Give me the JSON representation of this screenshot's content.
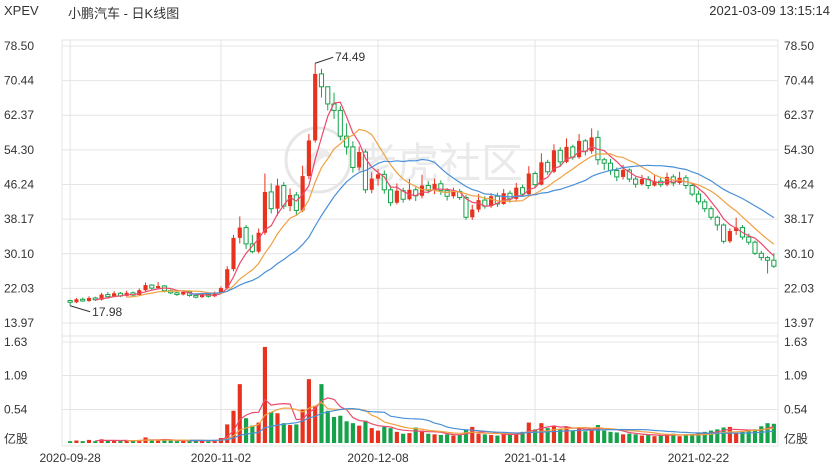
{
  "header": {
    "symbol": "XPEV",
    "title": "小鹏汽车 - 日K线图",
    "timestamp": "2021-03-09 13:15:14"
  },
  "watermark": "老虎社区",
  "colors": {
    "up": "#e8321d",
    "down": "#16a24a",
    "ma5": "#ec4a6c",
    "ma10": "#f0a040",
    "ma20": "#4a90d8",
    "grid": "#e4e4e4"
  },
  "chart_data": {
    "type": "candlestick",
    "price_axis": {
      "ticks": [
        "78.50",
        "70.44",
        "62.37",
        "54.30",
        "46.24",
        "38.17",
        "30.10",
        "22.03",
        "13.97"
      ],
      "min": 13.97,
      "max": 78.5
    },
    "volume_axis": {
      "ticks": [
        "1.63",
        "1.09",
        "0.54"
      ],
      "unit": "亿股",
      "max": 1.63
    },
    "annotations": {
      "high_label": "74.49",
      "low_label": "17.98"
    },
    "x_labels": [
      {
        "label": "2020-09-28",
        "index": 0
      },
      {
        "label": "2020-11-02",
        "index": 24
      },
      {
        "label": "2020-12-08",
        "index": 49
      },
      {
        "label": "2021-01-14",
        "index": 74
      },
      {
        "label": "2021-02-22",
        "index": 100
      }
    ],
    "candles": [
      [
        19.2,
        18.8,
        19.4,
        17.98,
        0.03
      ],
      [
        18.8,
        19.5,
        19.8,
        18.6,
        0.04
      ],
      [
        19.5,
        19.1,
        19.9,
        18.9,
        0.03
      ],
      [
        19.1,
        19.8,
        20.2,
        18.9,
        0.05
      ],
      [
        19.8,
        19.4,
        20.1,
        19.1,
        0.03
      ],
      [
        19.4,
        20.6,
        21.0,
        19.2,
        0.06
      ],
      [
        20.6,
        20.1,
        21.2,
        19.8,
        0.04
      ],
      [
        20.1,
        20.9,
        21.4,
        19.9,
        0.04
      ],
      [
        20.9,
        20.3,
        21.2,
        20.0,
        0.03
      ],
      [
        20.3,
        21.0,
        21.5,
        20.1,
        0.04
      ],
      [
        21.0,
        20.5,
        21.3,
        20.2,
        0.03
      ],
      [
        20.5,
        21.6,
        22.0,
        20.3,
        0.05
      ],
      [
        21.6,
        22.8,
        23.4,
        21.4,
        0.09
      ],
      [
        22.8,
        22.1,
        23.0,
        21.7,
        0.05
      ],
      [
        22.1,
        22.6,
        23.5,
        21.9,
        0.04
      ],
      [
        22.6,
        21.5,
        22.8,
        21.1,
        0.05
      ],
      [
        21.5,
        21.0,
        21.8,
        20.7,
        0.04
      ],
      [
        21.0,
        20.6,
        21.2,
        20.3,
        0.03
      ],
      [
        20.6,
        21.2,
        21.5,
        20.4,
        0.04
      ],
      [
        21.2,
        20.4,
        21.4,
        20.1,
        0.03
      ],
      [
        20.4,
        20.0,
        20.7,
        19.7,
        0.04
      ],
      [
        20.0,
        20.7,
        21.0,
        19.8,
        0.04
      ],
      [
        20.7,
        20.2,
        21.0,
        19.9,
        0.03
      ],
      [
        20.2,
        20.9,
        21.3,
        20.0,
        0.05
      ],
      [
        20.9,
        22.1,
        22.5,
        20.7,
        0.08
      ],
      [
        22.1,
        26.5,
        27.2,
        21.8,
        0.3
      ],
      [
        26.5,
        33.8,
        34.5,
        26.0,
        0.52
      ],
      [
        33.8,
        36.2,
        38.8,
        32.5,
        0.95
      ],
      [
        36.2,
        32.4,
        36.8,
        31.2,
        0.4
      ],
      [
        32.4,
        30.6,
        34.5,
        30.2,
        0.28
      ],
      [
        30.6,
        35.0,
        36.0,
        30.2,
        0.33
      ],
      [
        35.0,
        44.5,
        48.8,
        34.5,
        1.55
      ],
      [
        44.5,
        40.6,
        46.5,
        39.5,
        0.5
      ],
      [
        40.6,
        46.0,
        47.6,
        39.0,
        0.48
      ],
      [
        46.0,
        41.2,
        46.8,
        40.5,
        0.32
      ],
      [
        41.2,
        43.8,
        45.3,
        40.0,
        0.29
      ],
      [
        43.8,
        40.2,
        44.5,
        39.1,
        0.3
      ],
      [
        40.2,
        48.2,
        50.6,
        39.8,
        0.54
      ],
      [
        48.2,
        56.5,
        58.0,
        47.5,
        1.03
      ],
      [
        56.5,
        72.0,
        74.49,
        56.0,
        0.6
      ],
      [
        72.0,
        69.0,
        73.2,
        66.5,
        0.95
      ],
      [
        69.0,
        65.0,
        68.0,
        63.5,
        0.52
      ],
      [
        65.0,
        63.5,
        67.6,
        61.5,
        0.42
      ],
      [
        63.5,
        57.5,
        64.5,
        56.5,
        0.44
      ],
      [
        57.5,
        55.0,
        60.5,
        53.2,
        0.35
      ],
      [
        55.0,
        50.2,
        56.3,
        49.0,
        0.32
      ],
      [
        50.2,
        53.8,
        55.1,
        49.5,
        0.28
      ],
      [
        53.8,
        45.0,
        54.4,
        44.2,
        0.36
      ],
      [
        45.0,
        47.6,
        49.1,
        44.2,
        0.24
      ],
      [
        47.6,
        48.6,
        49.8,
        46.0,
        0.2
      ],
      [
        48.6,
        45.0,
        49.5,
        44.1,
        0.26
      ],
      [
        45.0,
        42.0,
        46.0,
        41.2,
        0.24
      ],
      [
        42.0,
        44.8,
        46.5,
        41.6,
        0.18
      ],
      [
        44.8,
        42.8,
        45.5,
        42.0,
        0.15
      ],
      [
        42.8,
        45.0,
        47.5,
        42.5,
        0.16
      ],
      [
        45.0,
        43.6,
        45.6,
        42.4,
        0.25
      ],
      [
        43.6,
        46.0,
        48.5,
        43.0,
        0.2
      ],
      [
        46.0,
        44.9,
        47.0,
        44.2,
        0.15
      ],
      [
        44.9,
        46.4,
        47.6,
        44.0,
        0.14
      ],
      [
        46.4,
        44.8,
        47.2,
        43.8,
        0.13
      ],
      [
        44.8,
        43.5,
        45.4,
        42.5,
        0.14
      ],
      [
        43.5,
        44.6,
        45.5,
        43.0,
        0.12
      ],
      [
        44.6,
        43.2,
        45.2,
        42.6,
        0.13
      ],
      [
        43.2,
        38.6,
        43.8,
        38.0,
        0.22
      ],
      [
        38.6,
        40.4,
        41.5,
        38.0,
        0.26
      ],
      [
        40.4,
        42.6,
        44.0,
        39.8,
        0.15
      ],
      [
        42.6,
        41.2,
        43.5,
        40.6,
        0.14
      ],
      [
        41.2,
        43.5,
        44.2,
        40.8,
        0.13
      ],
      [
        43.5,
        41.7,
        44.3,
        41.0,
        0.12
      ],
      [
        41.7,
        44.2,
        45.2,
        41.5,
        0.16
      ],
      [
        44.2,
        42.9,
        44.8,
        42.0,
        0.14
      ],
      [
        42.9,
        45.5,
        46.6,
        42.5,
        0.15
      ],
      [
        45.5,
        44.0,
        46.2,
        43.5,
        0.18
      ],
      [
        44.0,
        48.8,
        50.5,
        43.8,
        0.33
      ],
      [
        48.8,
        46.2,
        49.3,
        45.5,
        0.22
      ],
      [
        46.2,
        51.4,
        53.5,
        46.0,
        0.32
      ],
      [
        51.4,
        49.2,
        52.0,
        48.5,
        0.24
      ],
      [
        49.2,
        54.2,
        55.6,
        48.9,
        0.28
      ],
      [
        54.2,
        51.5,
        54.9,
        50.5,
        0.22
      ],
      [
        51.5,
        55.0,
        57.0,
        51.2,
        0.26
      ],
      [
        55.0,
        52.6,
        55.5,
        52.0,
        0.2
      ],
      [
        52.6,
        56.4,
        58.0,
        52.2,
        0.24
      ],
      [
        56.4,
        54.0,
        56.8,
        53.0,
        0.19
      ],
      [
        54.0,
        57.2,
        59.3,
        53.4,
        0.24
      ],
      [
        57.2,
        52.0,
        58.8,
        50.8,
        0.29
      ],
      [
        52.0,
        51.2,
        52.5,
        49.6,
        0.2
      ],
      [
        51.2,
        49.5,
        52.2,
        48.5,
        0.18
      ],
      [
        49.5,
        48.0,
        50.2,
        47.0,
        0.17
      ],
      [
        48.0,
        49.6,
        50.8,
        47.4,
        0.14
      ],
      [
        49.6,
        47.5,
        50.0,
        46.8,
        0.15
      ],
      [
        47.5,
        46.3,
        48.0,
        45.5,
        0.14
      ],
      [
        46.3,
        47.5,
        48.5,
        46.0,
        0.12
      ],
      [
        47.5,
        46.0,
        48.2,
        45.2,
        0.13
      ],
      [
        46.0,
        47.0,
        48.5,
        45.8,
        0.11
      ],
      [
        47.0,
        46.2,
        47.8,
        45.6,
        0.12
      ],
      [
        46.2,
        48.0,
        49.0,
        45.8,
        0.14
      ],
      [
        48.0,
        46.6,
        48.6,
        45.8,
        0.15
      ],
      [
        46.6,
        47.8,
        49.2,
        46.2,
        0.11
      ],
      [
        47.8,
        46.0,
        48.4,
        45.2,
        0.13
      ],
      [
        46.0,
        44.0,
        46.5,
        43.5,
        0.14
      ],
      [
        44.0,
        42.2,
        44.8,
        41.6,
        0.16
      ],
      [
        42.2,
        40.6,
        42.8,
        39.8,
        0.18
      ],
      [
        40.6,
        38.6,
        41.2,
        38.0,
        0.2
      ],
      [
        38.6,
        36.8,
        39.0,
        35.5,
        0.22
      ],
      [
        36.8,
        33.0,
        37.2,
        32.5,
        0.25
      ],
      [
        33.0,
        35.4,
        36.0,
        32.6,
        0.26
      ],
      [
        35.4,
        36.2,
        38.5,
        34.5,
        0.16
      ],
      [
        36.2,
        34.0,
        36.8,
        33.4,
        0.18
      ],
      [
        34.0,
        32.8,
        34.8,
        32.2,
        0.2
      ],
      [
        32.8,
        30.2,
        33.2,
        29.8,
        0.22
      ],
      [
        30.2,
        29.2,
        30.8,
        28.5,
        0.27
      ],
      [
        29.2,
        28.6,
        29.6,
        25.5,
        0.32
      ],
      [
        28.6,
        27.2,
        30.2,
        26.8,
        0.31
      ]
    ]
  }
}
